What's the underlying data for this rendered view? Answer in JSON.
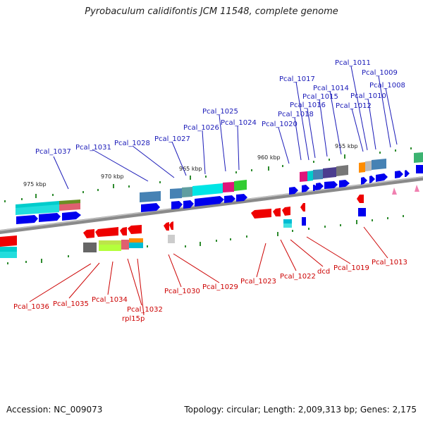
{
  "title": "Pyrobaculum calidifontis JCM 11548, complete genome",
  "accession": "Accession: NC_009073",
  "topology": "Topology: circular; Length: 2,009,313 bp; Genes: 2,175",
  "colors": {
    "forward_label": "#1a1ab8",
    "reverse_label": "#cc0000",
    "backbone": "#8a8a8a"
  },
  "kbp_ticks": [
    "975 kbp",
    "970 kbp",
    "965 kbp",
    "960 kbp",
    "955 kbp"
  ],
  "forward_genes": [
    "Pcal_1037",
    "Pcal_1031",
    "Pcal_1028",
    "Pcal_1027",
    "Pcal_1026",
    "Pcal_1025",
    "Pcal_1024",
    "Pcal_1020",
    "Pcal_1018",
    "Pcal_1017",
    "Pcal_1016",
    "Pcal_1015",
    "Pcal_1014",
    "Pcal_1012",
    "Pcal_1011",
    "Pcal_1010",
    "Pcal_1009",
    "Pcal_1008"
  ],
  "reverse_genes": [
    "Pcal_1036",
    "Pcal_1035",
    "Pcal_1034",
    "Pcal_1032",
    "rpl15p",
    "Pcal_1030",
    "Pcal_1029",
    "Pcal_1023",
    "Pcal_1022",
    "dcd",
    "Pcal_1019",
    "Pcal_1013"
  ]
}
